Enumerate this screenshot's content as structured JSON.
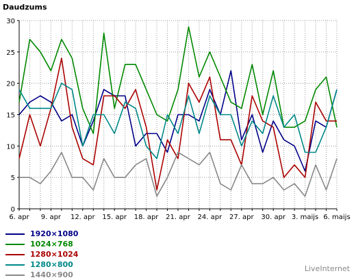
{
  "chart_data": {
    "type": "line",
    "title": "Daudzums",
    "xlabel": "",
    "ylabel": "",
    "ylim": [
      0,
      30
    ],
    "y_ticks": [
      0,
      5,
      10,
      15,
      20,
      25,
      30
    ],
    "grid": true,
    "legend_position": "bottom-left",
    "x_tick_labels": [
      "6. apr",
      "9. apr",
      "12. apr",
      "15. apr",
      "18. apr",
      "21. apr",
      "24. apr",
      "27. apr",
      "30. apr",
      "3. maijs",
      "6. maijs"
    ],
    "x_tick_every": 3,
    "series": [
      {
        "name": "1920×1080",
        "color": "#000088",
        "values": [
          15,
          17,
          18,
          17,
          14,
          15,
          10,
          14,
          19,
          18,
          18,
          10,
          12,
          12,
          9,
          15,
          15,
          14,
          19,
          15,
          22,
          11,
          15,
          9,
          14,
          11,
          10,
          6,
          14,
          13,
          19
        ]
      },
      {
        "name": "1024×768",
        "color": "#008800",
        "values": [
          17,
          27,
          25,
          22,
          27,
          24,
          16,
          12,
          28,
          16,
          23,
          23,
          19,
          15,
          14,
          19,
          29,
          21,
          25,
          21,
          17,
          16,
          23,
          15,
          22,
          13,
          13,
          14,
          19,
          21,
          13
        ]
      },
      {
        "name": "1280×1024",
        "color": "#aa0000",
        "values": [
          8,
          15,
          10,
          16,
          24,
          13,
          8,
          7,
          18,
          18,
          16,
          19,
          13,
          3,
          11,
          8,
          20,
          17,
          21,
          11,
          11,
          7,
          18,
          14,
          13,
          5,
          7,
          5,
          17,
          14,
          14
        ]
      },
      {
        "name": "1280×800",
        "color": "#008888",
        "values": [
          19,
          16,
          16,
          16,
          20,
          19,
          10,
          15,
          15,
          12,
          17,
          16,
          10,
          8,
          15,
          12,
          18,
          12,
          18,
          15,
          15,
          10,
          14,
          12,
          18,
          13,
          15,
          9,
          9,
          13,
          19
        ]
      },
      {
        "name": "1440×900",
        "color": "#888888",
        "values": [
          5,
          5,
          4,
          6,
          9,
          5,
          5,
          3,
          8,
          5,
          5,
          7,
          8,
          2,
          5,
          9,
          8,
          7,
          9,
          4,
          3,
          7,
          4,
          4,
          5,
          3,
          4,
          2,
          7,
          3,
          8
        ]
      }
    ]
  },
  "branding": {
    "text": "LiveInternet"
  }
}
